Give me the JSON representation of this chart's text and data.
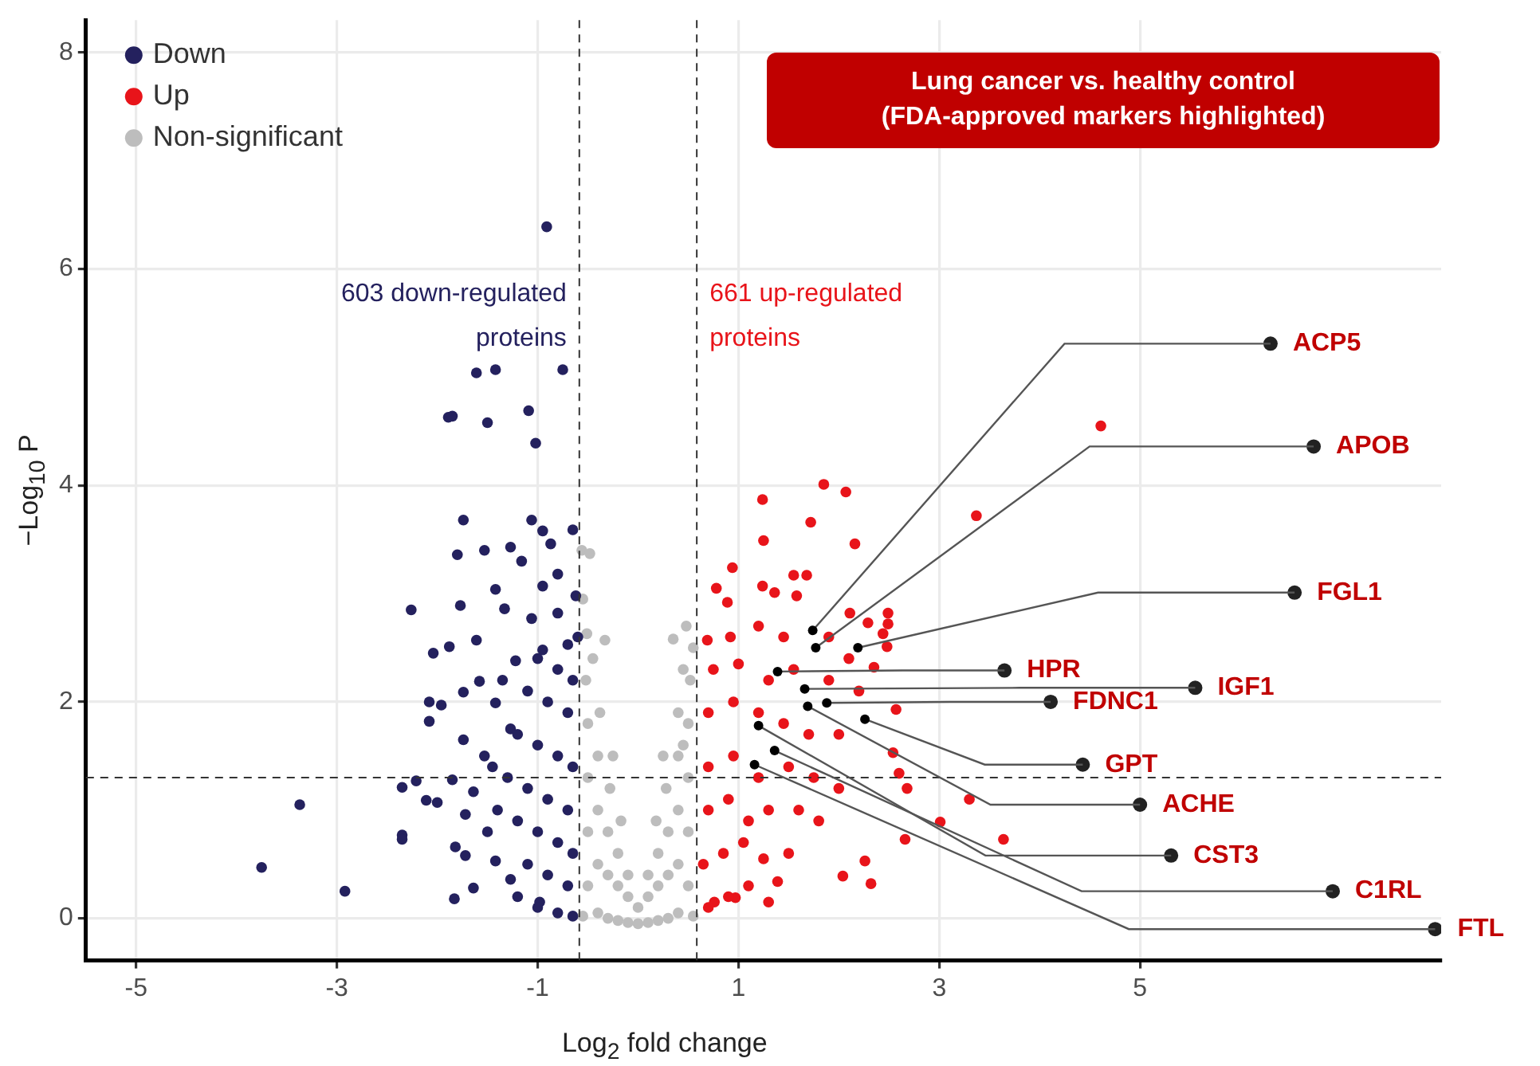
{
  "chart_data": {
    "type": "scatter",
    "title": "Lung cancer vs. healthy control (FDA-approved markers highlighted)",
    "xlabel": "Log$_{2}$ fold change",
    "ylabel": "−Log$_{10}$ P",
    "xlim": [
      -5.5,
      8.0
    ],
    "xticks": [
      -5,
      -3,
      -1,
      1,
      3,
      5
    ],
    "ylim": [
      -0.39,
      8.3
    ],
    "yticks": [
      0,
      2,
      4,
      6,
      8
    ],
    "grid": true,
    "legend": "top left",
    "marker": "circle",
    "series": [
      {
        "name": "Down",
        "color": "#24215e",
        "x": [
          -0.91,
          -1.61,
          -1.42,
          -0.75,
          -1.89,
          -1.85,
          -1.5,
          -1.09,
          -1.02,
          -1.74,
          -1.06,
          -0.95,
          -0.65,
          -1.8,
          -1.53,
          -1.27,
          -1.16,
          -0.87,
          -0.8,
          -2.26,
          -1.77,
          -1.42,
          -0.95,
          -0.62,
          -2.04,
          -1.88,
          -1.61,
          -1.33,
          -1.06,
          -0.8,
          -2.08,
          -1.96,
          -2.08,
          -1.74,
          -1.58,
          -1.42,
          -1.22,
          -0.95,
          -0.7,
          -1.74,
          -1.53,
          -1.27,
          -2.35,
          -2.21,
          -2.11,
          -2.0,
          -1.85,
          -1.64,
          -1.72,
          -2.35,
          -2.35,
          -1.82,
          -1.72,
          -1.42,
          -1.27,
          -2.92,
          -1.83,
          -1.64,
          -0.98,
          -3.37,
          -3.75,
          -1.2,
          -1.0,
          -0.8,
          -0.65,
          -1.1,
          -0.9,
          -0.7,
          -1.2,
          -1.0,
          -0.8,
          -0.65,
          -1.3,
          -1.1,
          -0.9,
          -0.7,
          -1.2,
          -1.0,
          -0.8,
          -0.65,
          -1.1,
          -0.9,
          -0.7,
          -1.0,
          -0.8,
          -0.65,
          -1.4,
          -1.5,
          -1.45,
          -1.35,
          -0.6
        ],
        "values": [
          6.39,
          5.04,
          5.07,
          5.07,
          4.63,
          4.64,
          4.58,
          4.69,
          4.39,
          3.68,
          3.68,
          3.58,
          3.59,
          3.36,
          3.4,
          3.43,
          3.3,
          3.46,
          3.18,
          2.85,
          2.89,
          3.04,
          3.07,
          2.98,
          2.45,
          2.51,
          2.57,
          2.86,
          2.77,
          2.82,
          2.0,
          1.97,
          1.82,
          2.09,
          2.19,
          1.99,
          2.38,
          2.48,
          2.53,
          1.65,
          1.5,
          1.75,
          1.21,
          1.27,
          1.09,
          1.07,
          1.28,
          1.17,
          0.96,
          0.77,
          0.73,
          0.66,
          0.58,
          0.53,
          0.36,
          0.25,
          0.18,
          0.28,
          0.15,
          1.05,
          0.47,
          0.2,
          0.1,
          0.05,
          0.02,
          0.5,
          0.4,
          0.3,
          0.9,
          0.8,
          0.7,
          0.6,
          1.3,
          1.2,
          1.1,
          1.0,
          1.7,
          1.6,
          1.5,
          1.4,
          2.1,
          2.0,
          1.9,
          2.4,
          2.3,
          2.2,
          1.0,
          0.8,
          1.4,
          2.2,
          2.6
        ]
      },
      {
        "name": "Up",
        "color": "#e8141a",
        "x": [
          1.85,
          2.07,
          1.24,
          1.72,
          1.25,
          2.16,
          3.37,
          0.94,
          1.55,
          1.68,
          0.78,
          1.24,
          1.36,
          1.58,
          0.89,
          2.11,
          2.49,
          2.29,
          2.49,
          2.44,
          2.48,
          0.69,
          0.92,
          2.35,
          2.57,
          2.54,
          2.6,
          2.68,
          3.01,
          3.64,
          2.66,
          2.26,
          2.04,
          2.32,
          1.39,
          0.97,
          0.76,
          4.61,
          3.3,
          0.7,
          0.9,
          1.1,
          1.3,
          0.65,
          0.85,
          1.05,
          1.25,
          1.5,
          0.7,
          0.9,
          1.1,
          1.3,
          1.6,
          1.8,
          0.7,
          0.95,
          1.2,
          1.5,
          1.75,
          2.0,
          0.7,
          0.95,
          1.2,
          1.45,
          1.7,
          2.0,
          0.75,
          1.0,
          1.3,
          1.55,
          1.9,
          2.2,
          1.9,
          2.1,
          1.45,
          1.2
        ],
        "values": [
          4.01,
          3.94,
          3.87,
          3.66,
          3.49,
          3.46,
          3.72,
          3.24,
          3.17,
          3.17,
          3.05,
          3.07,
          3.01,
          2.98,
          2.92,
          2.82,
          2.82,
          2.73,
          2.72,
          2.63,
          2.51,
          2.57,
          2.6,
          2.32,
          1.93,
          1.53,
          1.34,
          1.2,
          0.89,
          0.73,
          0.73,
          0.53,
          0.39,
          0.32,
          0.34,
          0.19,
          0.15,
          4.55,
          1.1,
          0.1,
          0.2,
          0.3,
          0.15,
          0.5,
          0.6,
          0.7,
          0.55,
          0.6,
          1.0,
          1.1,
          0.9,
          1.0,
          1.0,
          0.9,
          1.4,
          1.5,
          1.3,
          1.4,
          1.3,
          1.2,
          1.9,
          2.0,
          1.9,
          1.8,
          1.7,
          1.7,
          2.3,
          2.35,
          2.2,
          2.3,
          2.2,
          2.1,
          2.6,
          2.4,
          2.6,
          2.7
        ]
      },
      {
        "name": "Non-significant",
        "color": "#bdbdbd",
        "x": [
          -0.55,
          -0.5,
          -0.5,
          -0.5,
          -0.5,
          -0.52,
          -0.45,
          -0.4,
          -0.4,
          -0.4,
          -0.4,
          -0.38,
          -0.3,
          -0.3,
          -0.3,
          -0.28,
          -0.25,
          -0.2,
          -0.2,
          -0.2,
          -0.17,
          -0.1,
          -0.1,
          -0.1,
          0,
          0,
          0.1,
          0.1,
          0.1,
          0.2,
          0.2,
          0.2,
          0.18,
          0.3,
          0.3,
          0.3,
          0.28,
          0.25,
          0.4,
          0.4,
          0.4,
          0.4,
          0.4,
          0.5,
          0.5,
          0.5,
          0.5,
          0.52,
          0.55,
          0.45,
          0.35,
          0.45,
          -0.56,
          -0.48,
          -0.33,
          -0.51,
          -0.55,
          0.55,
          0.48
        ],
        "values": [
          0.02,
          0.3,
          0.8,
          1.3,
          1.8,
          2.2,
          2.4,
          0.05,
          0.5,
          1.0,
          1.5,
          1.9,
          0.0,
          0.4,
          0.8,
          1.2,
          1.5,
          -0.02,
          0.3,
          0.6,
          0.9,
          -0.04,
          0.2,
          0.4,
          -0.05,
          0.1,
          -0.04,
          0.2,
          0.4,
          -0.02,
          0.3,
          0.6,
          0.9,
          0.0,
          0.4,
          0.8,
          1.2,
          1.5,
          0.05,
          0.5,
          1.0,
          1.5,
          1.9,
          0.3,
          0.8,
          1.3,
          1.8,
          2.2,
          0.02,
          2.3,
          2.58,
          1.6,
          3.4,
          3.37,
          2.57,
          2.63,
          2.95,
          2.5,
          2.7
        ]
      },
      {
        "color": "#222222",
        "x": [
          6.3,
          6.73,
          6.54,
          3.65,
          5.55,
          4.11,
          4.43,
          5.0,
          5.31,
          6.92,
          7.94
        ],
        "values": [
          5.31,
          4.36,
          3.01,
          2.29,
          2.13,
          2.0,
          1.42,
          1.05,
          0.58,
          0.25,
          -0.1
        ]
      }
    ],
    "ref_lines": [
      {
        "axis": "x",
        "value": -0.585,
        "label": "603 down-regulated proteins",
        "line_style": "dashed"
      },
      {
        "axis": "x",
        "value": 0.585,
        "label": "661 up-regulated proteins",
        "line_style": "dashed"
      },
      {
        "axis": "y",
        "value": 1.301,
        "line_style": "dashed"
      }
    ],
    "annotations": [
      {
        "text": "ACP5",
        "x": 1.74,
        "y": 2.66
      },
      {
        "text": "APOB",
        "x": 1.77,
        "y": 2.5
      },
      {
        "text": "FGL1",
        "x": 2.19,
        "y": 2.5
      },
      {
        "text": "HPR",
        "x": 1.39,
        "y": 2.28
      },
      {
        "text": "IGF1",
        "x": 1.66,
        "y": 2.12
      },
      {
        "text": "FDNC1",
        "x": 1.88,
        "y": 1.99
      },
      {
        "text": "GPT",
        "x": 2.26,
        "y": 1.84
      },
      {
        "text": "ACHE",
        "x": 1.69,
        "y": 1.96
      },
      {
        "text": "CST3",
        "x": 1.2,
        "y": 1.78
      },
      {
        "text": "C1RL",
        "x": 1.36,
        "y": 1.55
      },
      {
        "text": "FTL",
        "x": 1.16,
        "y": 1.42
      }
    ]
  }
}
